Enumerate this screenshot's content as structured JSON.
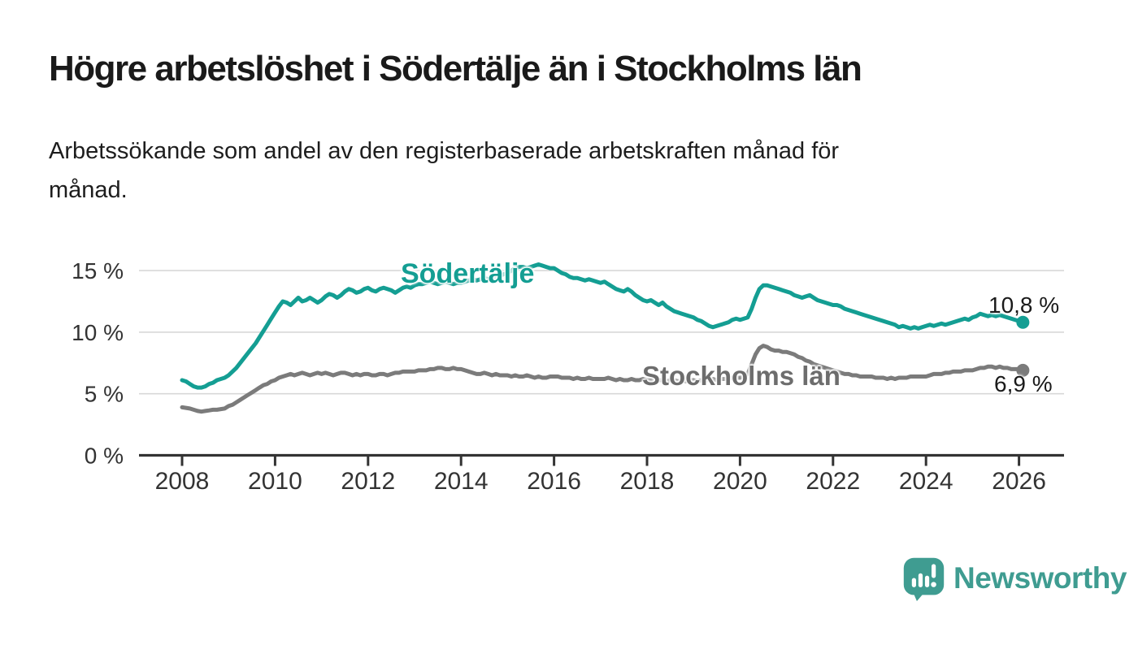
{
  "header": {
    "title": "Högre arbetslöshet i Södertälje än i Stockholms län",
    "subtitle": "Arbetssökande som andel av den registerbaserade arbetskraften månad för\nmånad."
  },
  "colors": {
    "sodertalje": "#149e93",
    "stockholm_line": "#7b7b7b",
    "stockholm_label": "#6d6d6d",
    "axis": "#333333",
    "grid": "#d8d8d8",
    "tick_text": "#333333",
    "value_text": "#1a1a1a",
    "logo": "#3f9c91"
  },
  "branding": {
    "logo_text": "Newsworthy",
    "logo_icon": "speech-bubble-bar-chart"
  },
  "chart_data": {
    "type": "line",
    "title": "Högre arbetslöshet i Södertälje än i Stockholms län",
    "xlabel": "",
    "ylabel": "",
    "grid": "horizontal-only",
    "legend_position": "inline-labels",
    "ylim": [
      0,
      16.5
    ],
    "xlim": [
      2007.1,
      2027
    ],
    "yticks": [
      0,
      5,
      10,
      15
    ],
    "ytick_labels": [
      "0 %",
      "5 %",
      "10 %",
      "15 %"
    ],
    "xticks": [
      2008,
      2010,
      2012,
      2014,
      2016,
      2018,
      2020,
      2022,
      2024,
      2026
    ],
    "xtick_labels": [
      "2008",
      "2010",
      "2012",
      "2014",
      "2016",
      "2018",
      "2020",
      "2022",
      "2024",
      "2026"
    ],
    "x_start_year": 2008,
    "points_per_year": 12,
    "series": [
      {
        "name": "Södertälje",
        "color": "#149e93",
        "label_color": "#149e93",
        "end_label": "10,8 %",
        "end_value": 10.8,
        "values": [
          6.1,
          6.0,
          5.8,
          5.6,
          5.5,
          5.5,
          5.6,
          5.8,
          5.9,
          6.1,
          6.2,
          6.3,
          6.5,
          6.8,
          7.1,
          7.5,
          7.9,
          8.3,
          8.7,
          9.1,
          9.6,
          10.1,
          10.6,
          11.1,
          11.6,
          12.1,
          12.5,
          12.4,
          12.2,
          12.5,
          12.8,
          12.5,
          12.6,
          12.8,
          12.6,
          12.4,
          12.6,
          12.9,
          13.1,
          13.0,
          12.8,
          13.0,
          13.3,
          13.5,
          13.4,
          13.2,
          13.3,
          13.5,
          13.6,
          13.4,
          13.3,
          13.5,
          13.6,
          13.5,
          13.4,
          13.2,
          13.4,
          13.6,
          13.7,
          13.6,
          13.8,
          13.9,
          13.9,
          14.0,
          14.1,
          14.0,
          13.9,
          14.0,
          14.1,
          14.0,
          13.9,
          14.0,
          14.0,
          14.1,
          14.2,
          14.3,
          14.2,
          14.3,
          14.4,
          14.3,
          14.4,
          14.5,
          14.6,
          14.7,
          14.8,
          15.0,
          15.2,
          15.3,
          15.3,
          15.2,
          15.3,
          15.4,
          15.5,
          15.4,
          15.3,
          15.2,
          15.2,
          15.0,
          14.8,
          14.7,
          14.5,
          14.4,
          14.4,
          14.3,
          14.2,
          14.3,
          14.2,
          14.1,
          14.0,
          14.1,
          13.9,
          13.7,
          13.5,
          13.4,
          13.3,
          13.5,
          13.3,
          13.0,
          12.8,
          12.6,
          12.5,
          12.6,
          12.4,
          12.2,
          12.4,
          12.1,
          11.9,
          11.7,
          11.6,
          11.5,
          11.4,
          11.3,
          11.2,
          11.0,
          10.9,
          10.7,
          10.5,
          10.4,
          10.5,
          10.6,
          10.7,
          10.8,
          11.0,
          11.1,
          11.0,
          11.1,
          11.2,
          11.9,
          12.8,
          13.5,
          13.8,
          13.8,
          13.7,
          13.6,
          13.5,
          13.4,
          13.3,
          13.2,
          13.0,
          12.9,
          12.8,
          12.9,
          13.0,
          12.8,
          12.6,
          12.5,
          12.4,
          12.3,
          12.2,
          12.2,
          12.1,
          11.9,
          11.8,
          11.7,
          11.6,
          11.5,
          11.4,
          11.3,
          11.2,
          11.1,
          11.0,
          10.9,
          10.8,
          10.7,
          10.6,
          10.4,
          10.5,
          10.4,
          10.3,
          10.4,
          10.3,
          10.4,
          10.5,
          10.6,
          10.5,
          10.6,
          10.7,
          10.6,
          10.7,
          10.8,
          10.9,
          11.0,
          11.1,
          11.0,
          11.2,
          11.3,
          11.5,
          11.4,
          11.3,
          11.4,
          11.3,
          11.4,
          11.3,
          11.2,
          11.1,
          11.0,
          10.9,
          10.8
        ]
      },
      {
        "name": "Stockholms län",
        "color": "#7b7b7b",
        "label_color": "#6d6d6d",
        "end_label": "6,9 %",
        "end_value": 6.9,
        "values": [
          3.9,
          3.85,
          3.8,
          3.7,
          3.6,
          3.55,
          3.6,
          3.65,
          3.7,
          3.7,
          3.75,
          3.8,
          4.0,
          4.1,
          4.3,
          4.5,
          4.7,
          4.9,
          5.1,
          5.3,
          5.5,
          5.7,
          5.8,
          6.0,
          6.1,
          6.3,
          6.4,
          6.5,
          6.6,
          6.5,
          6.6,
          6.7,
          6.6,
          6.5,
          6.6,
          6.7,
          6.6,
          6.7,
          6.6,
          6.5,
          6.6,
          6.7,
          6.7,
          6.6,
          6.5,
          6.6,
          6.5,
          6.6,
          6.6,
          6.5,
          6.5,
          6.6,
          6.6,
          6.5,
          6.6,
          6.7,
          6.7,
          6.8,
          6.8,
          6.8,
          6.8,
          6.9,
          6.9,
          6.9,
          7.0,
          7.0,
          7.1,
          7.1,
          7.0,
          7.0,
          7.1,
          7.0,
          7.0,
          6.9,
          6.8,
          6.7,
          6.6,
          6.6,
          6.7,
          6.6,
          6.5,
          6.6,
          6.5,
          6.5,
          6.5,
          6.4,
          6.5,
          6.4,
          6.4,
          6.5,
          6.4,
          6.3,
          6.4,
          6.3,
          6.3,
          6.4,
          6.4,
          6.4,
          6.3,
          6.3,
          6.3,
          6.2,
          6.3,
          6.2,
          6.2,
          6.3,
          6.2,
          6.2,
          6.2,
          6.2,
          6.3,
          6.2,
          6.1,
          6.2,
          6.1,
          6.1,
          6.2,
          6.1,
          6.1,
          6.2,
          6.1,
          6.1,
          6.2,
          6.1,
          6.1,
          6.0,
          6.1,
          6.1,
          6.0,
          6.1,
          6.0,
          6.1,
          6.1,
          6.0,
          6.1,
          6.1,
          6.1,
          6.2,
          6.1,
          6.2,
          6.2,
          6.2,
          6.3,
          6.3,
          6.3,
          6.4,
          6.6,
          7.4,
          8.2,
          8.7,
          8.9,
          8.8,
          8.6,
          8.5,
          8.5,
          8.4,
          8.4,
          8.3,
          8.2,
          8.0,
          7.9,
          7.7,
          7.6,
          7.4,
          7.3,
          7.2,
          7.1,
          7.0,
          6.9,
          6.8,
          6.7,
          6.6,
          6.6,
          6.5,
          6.5,
          6.4,
          6.4,
          6.4,
          6.4,
          6.3,
          6.3,
          6.3,
          6.2,
          6.3,
          6.2,
          6.3,
          6.3,
          6.3,
          6.4,
          6.4,
          6.4,
          6.4,
          6.4,
          6.5,
          6.6,
          6.6,
          6.6,
          6.7,
          6.7,
          6.8,
          6.8,
          6.8,
          6.9,
          6.9,
          6.9,
          7.0,
          7.1,
          7.1,
          7.2,
          7.2,
          7.1,
          7.2,
          7.1,
          7.1,
          7.0,
          7.0,
          7.0,
          6.9
        ]
      }
    ]
  }
}
